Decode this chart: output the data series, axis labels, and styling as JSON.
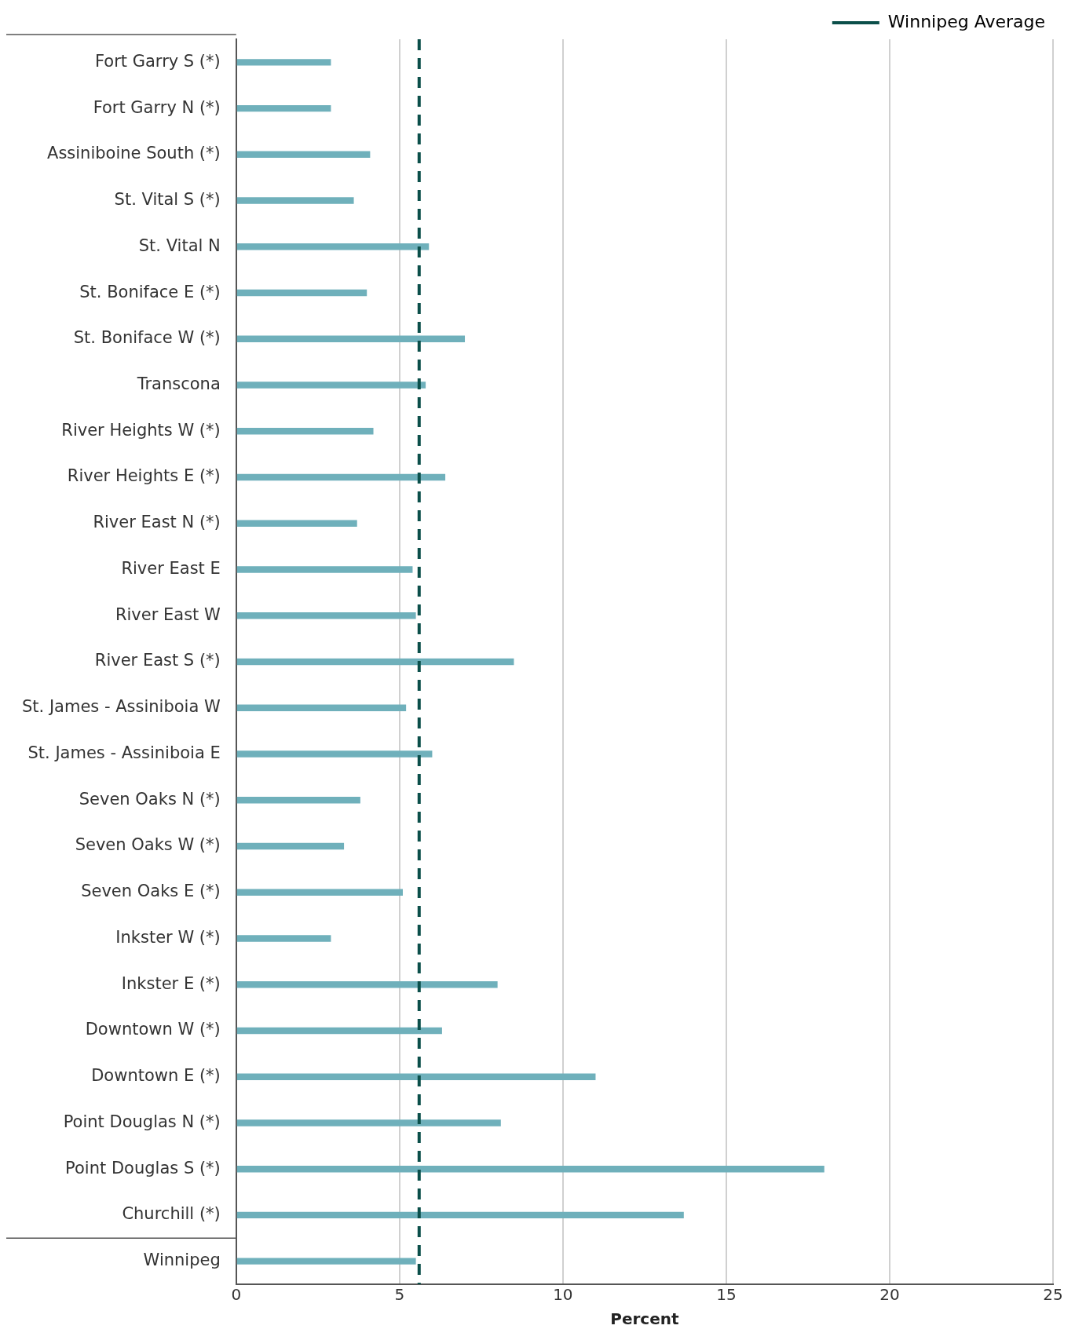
{
  "chart_data": {
    "type": "bar",
    "orientation": "horizontal",
    "xlabel": "Percent",
    "categories": [
      "Fort Garry S (*)",
      "Fort Garry N (*)",
      "Assiniboine South (*)",
      "St. Vital S (*)",
      "St. Vital N",
      "St. Boniface E (*)",
      "St. Boniface W (*)",
      "Transcona",
      "River Heights W (*)",
      "River Heights E (*)",
      "River East N (*)",
      "River East E",
      "River East W",
      "River East S (*)",
      "St. James - Assiniboia W",
      "St. James - Assiniboia E",
      "Seven Oaks N (*)",
      "Seven Oaks W (*)",
      "Seven Oaks E (*)",
      "Inkster W (*)",
      "Inkster E (*)",
      "Downtown W (*)",
      "Downtown E (*)",
      "Point Douglas N (*)",
      "Point Douglas S (*)",
      "Churchill (*)",
      "Winnipeg"
    ],
    "values": [
      2.9,
      2.9,
      4.1,
      3.6,
      5.9,
      4.0,
      7.0,
      5.8,
      4.2,
      6.4,
      3.7,
      5.4,
      5.5,
      8.5,
      5.2,
      6.0,
      3.8,
      3.3,
      5.1,
      2.9,
      8.0,
      6.3,
      11.0,
      8.1,
      18.0,
      13.7,
      5.5
    ],
    "color": "#6fb0bb",
    "xlim": [
      0,
      25
    ],
    "xticks": [
      0,
      5,
      10,
      15,
      20,
      25
    ],
    "grid": "x",
    "legend": "top right",
    "ref_lines": [
      {
        "axis": "x",
        "value": 5.6,
        "label": "Winnipeg Average",
        "color": "#0b4f4a",
        "line_style": "dashed"
      }
    ]
  }
}
